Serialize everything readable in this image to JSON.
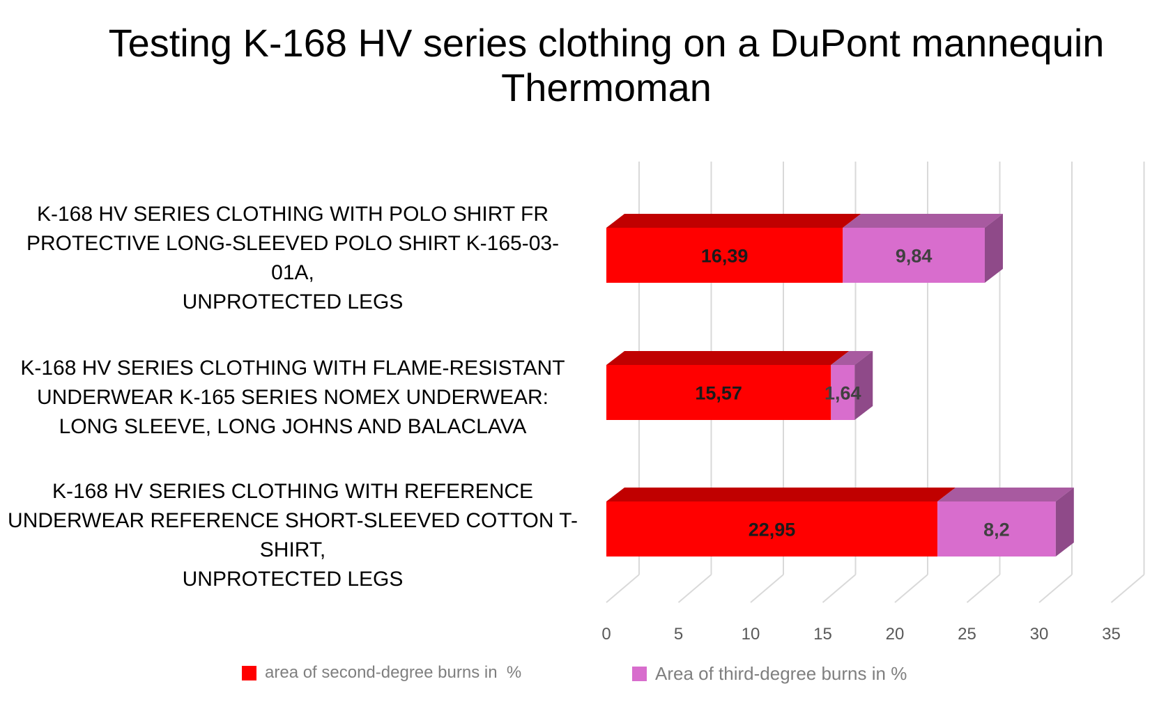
{
  "chart_data": {
    "type": "bar",
    "orientation": "horizontal",
    "stacked": true,
    "style": "3d",
    "title_lines": [
      "Testing K-168 HV series clothing on a DuPont mannequin",
      "Thermoman"
    ],
    "categories": [
      "K-168 HV SERIES CLOTHING WITH POLO SHIRT FR\nPROTECTIVE LONG-SLEEVED POLO SHIRT K-165-03-\n01A,\nUNPROTECTED LEGS",
      "K-168 HV SERIES CLOTHING WITH FLAME-RESISTANT\nUNDERWEAR K-165 SERIES NOMEX UNDERWEAR:\nLONG SLEEVE, LONG JOHNS AND BALACLAVA",
      "K-168 HV SERIES CLOTHING WITH REFERENCE\nUNDERWEAR REFERENCE SHORT-SLEEVED COTTON T-\nSHIRT,\nUNPROTECTED LEGS"
    ],
    "series": [
      {
        "name": "area of second-degree burns in  %",
        "values": [
          16.39,
          15.57,
          22.95
        ],
        "labels": [
          "16,39",
          "15,57",
          "22,95"
        ],
        "color": "#ff0000"
      },
      {
        "name": "Area of third-degree burns in %",
        "values": [
          9.84,
          1.64,
          8.2
        ],
        "labels": [
          "9,84",
          "1,64",
          "8,2"
        ],
        "color": "#d86dcd"
      }
    ],
    "xlim": [
      0,
      35
    ],
    "xticks": [
      0,
      5,
      10,
      15,
      20,
      25,
      30,
      35
    ],
    "xtick_labels": [
      "0",
      "5",
      "10",
      "15",
      "20",
      "25",
      "30",
      "35"
    ],
    "grid": true,
    "legend_position": "bottom"
  },
  "colors": {
    "series1_front": "#ff0000",
    "series1_top": "#c00000",
    "series2_front": "#d86dcd",
    "series2_top": "#a85aa0",
    "series2_side": "#8f4a89",
    "grid": "#d9d9d9",
    "tick_label": "#595959",
    "legend_text": "#7f7f7f"
  }
}
